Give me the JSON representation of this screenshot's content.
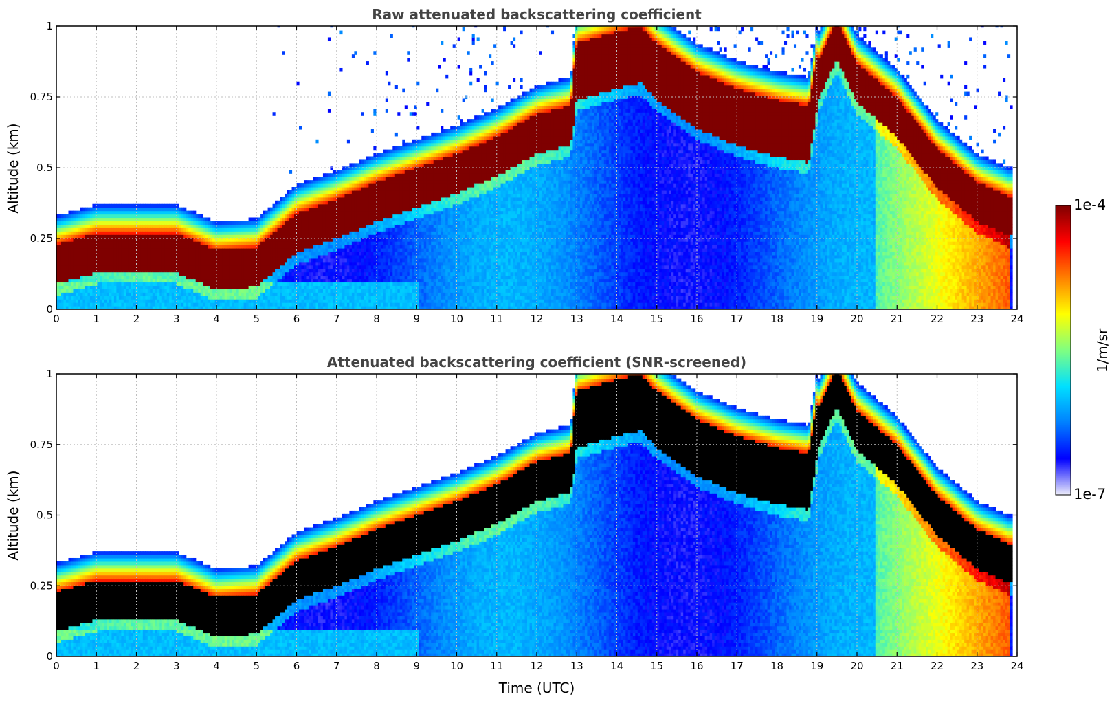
{
  "colors": {
    "colormap": [
      "#ececfa",
      "#0000ff",
      "#0080ff",
      "#00e0ff",
      "#80ff80",
      "#ffff00",
      "#ff8000",
      "#ff0000",
      "#800000"
    ],
    "saturated_raw": "#7f0000",
    "saturated_screened": "#000000",
    "grid": "#bfbfbf"
  },
  "chart_data": [
    {
      "type": "heatmap",
      "title": "Raw attenuated backscattering coefficient",
      "xlabel": "",
      "ylabel": "Altitude (km)",
      "xlim": [
        0,
        24
      ],
      "ylim": [
        0,
        1
      ],
      "xticks": [
        "0",
        "1",
        "2",
        "3",
        "4",
        "5",
        "6",
        "7",
        "8",
        "9",
        "10",
        "11",
        "12",
        "13",
        "14",
        "15",
        "16",
        "17",
        "18",
        "19",
        "20",
        "21",
        "22",
        "23",
        "24"
      ],
      "yticks": [
        "0",
        "0.25",
        "0.5",
        "0.75",
        "1"
      ],
      "grid": true,
      "saturation_color": "dark-red",
      "layer_peak_altitude_km": {
        "time_utc": [
          0,
          1,
          2,
          3,
          4,
          5,
          6,
          7,
          8,
          9,
          10,
          11,
          12,
          12.85,
          13,
          14,
          14.6,
          15,
          16,
          17,
          18,
          18.8,
          19,
          19.5,
          20,
          21,
          22,
          23,
          23.8
        ],
        "altitude": [
          0.16,
          0.2,
          0.2,
          0.2,
          0.14,
          0.15,
          0.27,
          0.32,
          0.38,
          0.43,
          0.48,
          0.54,
          0.62,
          0.65,
          0.84,
          0.88,
          0.9,
          0.84,
          0.74,
          0.68,
          0.64,
          0.62,
          0.8,
          0.95,
          0.8,
          0.68,
          0.5,
          0.38,
          0.33
        ]
      }
    },
    {
      "type": "heatmap",
      "title": "Attenuated backscattering coefficient (SNR-screened)",
      "xlabel": "Time (UTC)",
      "ylabel": "Altitude (km)",
      "xlim": [
        0,
        24
      ],
      "ylim": [
        0,
        1
      ],
      "xticks": [
        "0",
        "1",
        "2",
        "3",
        "4",
        "5",
        "6",
        "7",
        "8",
        "9",
        "10",
        "11",
        "12",
        "13",
        "14",
        "15",
        "16",
        "17",
        "18",
        "19",
        "20",
        "21",
        "22",
        "23",
        "24"
      ],
      "yticks": [
        "0",
        "0.25",
        "0.5",
        "0.75",
        "1"
      ],
      "grid": true,
      "saturation_color": "black",
      "layer_peak_altitude_km": {
        "time_utc": [
          0,
          1,
          2,
          3,
          4,
          5,
          6,
          7,
          8,
          9,
          10,
          11,
          12,
          12.85,
          13,
          14,
          14.6,
          15,
          16,
          17,
          18,
          18.8,
          19,
          19.5,
          20,
          21,
          22,
          23,
          23.8
        ],
        "altitude": [
          0.16,
          0.2,
          0.2,
          0.2,
          0.14,
          0.15,
          0.27,
          0.32,
          0.38,
          0.43,
          0.48,
          0.54,
          0.62,
          0.65,
          0.84,
          0.88,
          0.9,
          0.84,
          0.74,
          0.68,
          0.64,
          0.62,
          0.8,
          0.95,
          0.8,
          0.68,
          0.5,
          0.38,
          0.33
        ]
      }
    }
  ],
  "colorbar": {
    "scale": "log",
    "min_label": "1e-7",
    "max_label": "1e-4",
    "label": "1/m/sr"
  }
}
